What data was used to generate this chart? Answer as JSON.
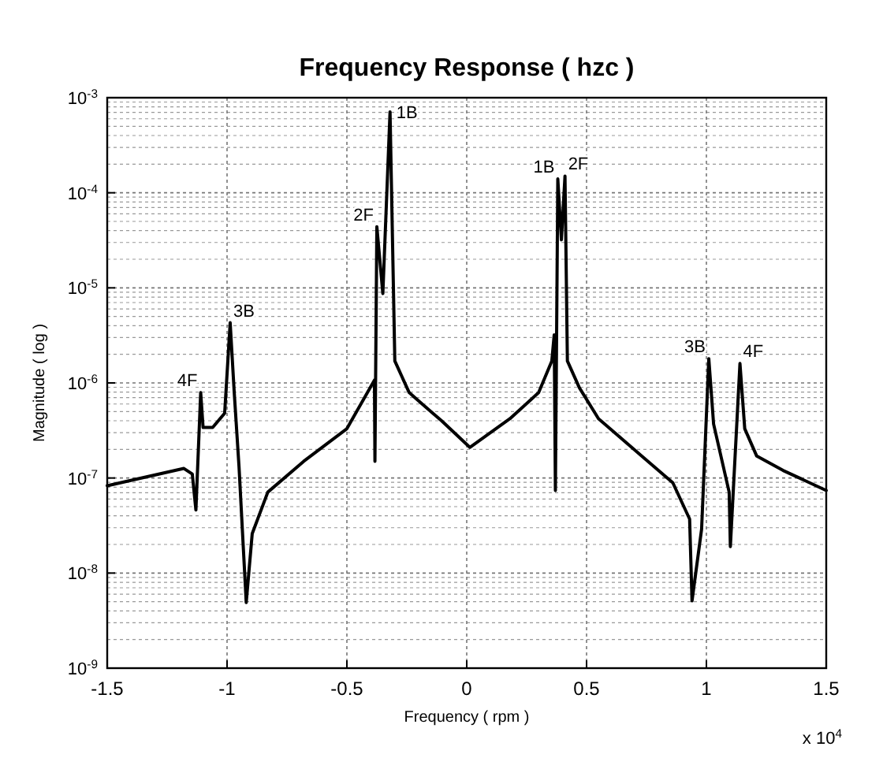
{
  "chart_data": {
    "type": "line",
    "title": "Frequency Response ( hzc )",
    "xlabel": "Frequency ( rpm )",
    "ylabel": "Magnitude ( log )",
    "log": "y",
    "grid": true,
    "marker": "none",
    "line_style": "solid",
    "xlim": [
      -1.5,
      1.5
    ],
    "xticks": [
      -1.5,
      -1,
      -0.5,
      0,
      0.5,
      1,
      1.5
    ],
    "ylim": [
      1e-09,
      0.001
    ],
    "yticks": [
      {
        "value": 1e-09,
        "label": "10$^{-9}$"
      },
      {
        "value": 1e-08,
        "label": "10$^{-8}$"
      },
      {
        "value": 1e-07,
        "label": "10$^{-7}$"
      },
      {
        "value": 1e-06,
        "label": "10$^{-6}$"
      },
      {
        "value": 1e-05,
        "label": "10$^{-5}$"
      },
      {
        "value": 0.0001,
        "label": "10$^{-4}$"
      },
      {
        "value": 0.001,
        "label": "10$^{-3}$"
      }
    ],
    "x": [
      -1.5,
      -1.18,
      -1.145,
      -1.13,
      -1.11,
      -1.1,
      -1.06,
      -1.01,
      -0.987,
      -0.97,
      -0.95,
      -0.92,
      -0.895,
      -0.83,
      -0.68,
      -0.5,
      -0.385,
      -0.383,
      -0.375,
      -0.35,
      -0.32,
      -0.3,
      -0.24,
      -0.15,
      -0.105,
      0.013,
      0.18,
      0.3,
      0.355,
      0.365,
      0.37,
      0.38,
      0.395,
      0.41,
      0.42,
      0.47,
      0.55,
      0.73,
      0.86,
      0.93,
      0.94,
      0.98,
      1.01,
      1.03,
      1.095,
      1.1,
      1.14,
      1.16,
      1.21,
      1.32,
      1.5
    ],
    "series": [
      {
        "color": "#000000",
        "values": [
          8.3e-08,
          1.26e-07,
          1.1e-07,
          4.6e-08,
          7.9e-07,
          3.4e-07,
          3.4e-07,
          4.8e-07,
          4.3e-06,
          7.9e-07,
          1.3e-07,
          4.9e-09,
          2.6e-08,
          7.1e-08,
          1.5e-07,
          3.3e-07,
          1.07e-06,
          1.5e-07,
          4.4e-05,
          8.7e-06,
          0.00071,
          1.7e-06,
          7.9e-07,
          5e-07,
          4e-07,
          2.1e-07,
          4.2e-07,
          7.9e-07,
          1.7e-06,
          3.2e-06,
          7.4e-08,
          0.00014,
          3.2e-05,
          0.00015,
          1.7e-06,
          8.9e-07,
          4.2e-07,
          1.7e-07,
          8.9e-08,
          3.7e-08,
          5.1e-09,
          2.9e-08,
          1.8e-06,
          3.7e-07,
          7.1e-08,
          1.9e-08,
          1.6e-06,
          3.3e-07,
          1.7e-07,
          1.2e-07,
          7.4e-08
        ]
      }
    ],
    "annotations": [
      {
        "text": "4F",
        "x": -1.11,
        "y": 7.9e-07
      },
      {
        "text": "3B",
        "x": -0.987,
        "y": 4.3e-06
      },
      {
        "text": "2F",
        "x": -0.375,
        "y": 4.4e-05
      },
      {
        "text": "1B",
        "x": -0.32,
        "y": 0.00071
      },
      {
        "text": "1B",
        "x": 0.38,
        "y": 0.00014
      },
      {
        "text": "2F",
        "x": 0.41,
        "y": 0.00015
      },
      {
        "text": "3B",
        "x": 1.01,
        "y": 1.8e-06
      },
      {
        "text": "4F",
        "x": 1.14,
        "y": 1.6e-06
      },
      "x 10$^{4}$"
    ]
  }
}
